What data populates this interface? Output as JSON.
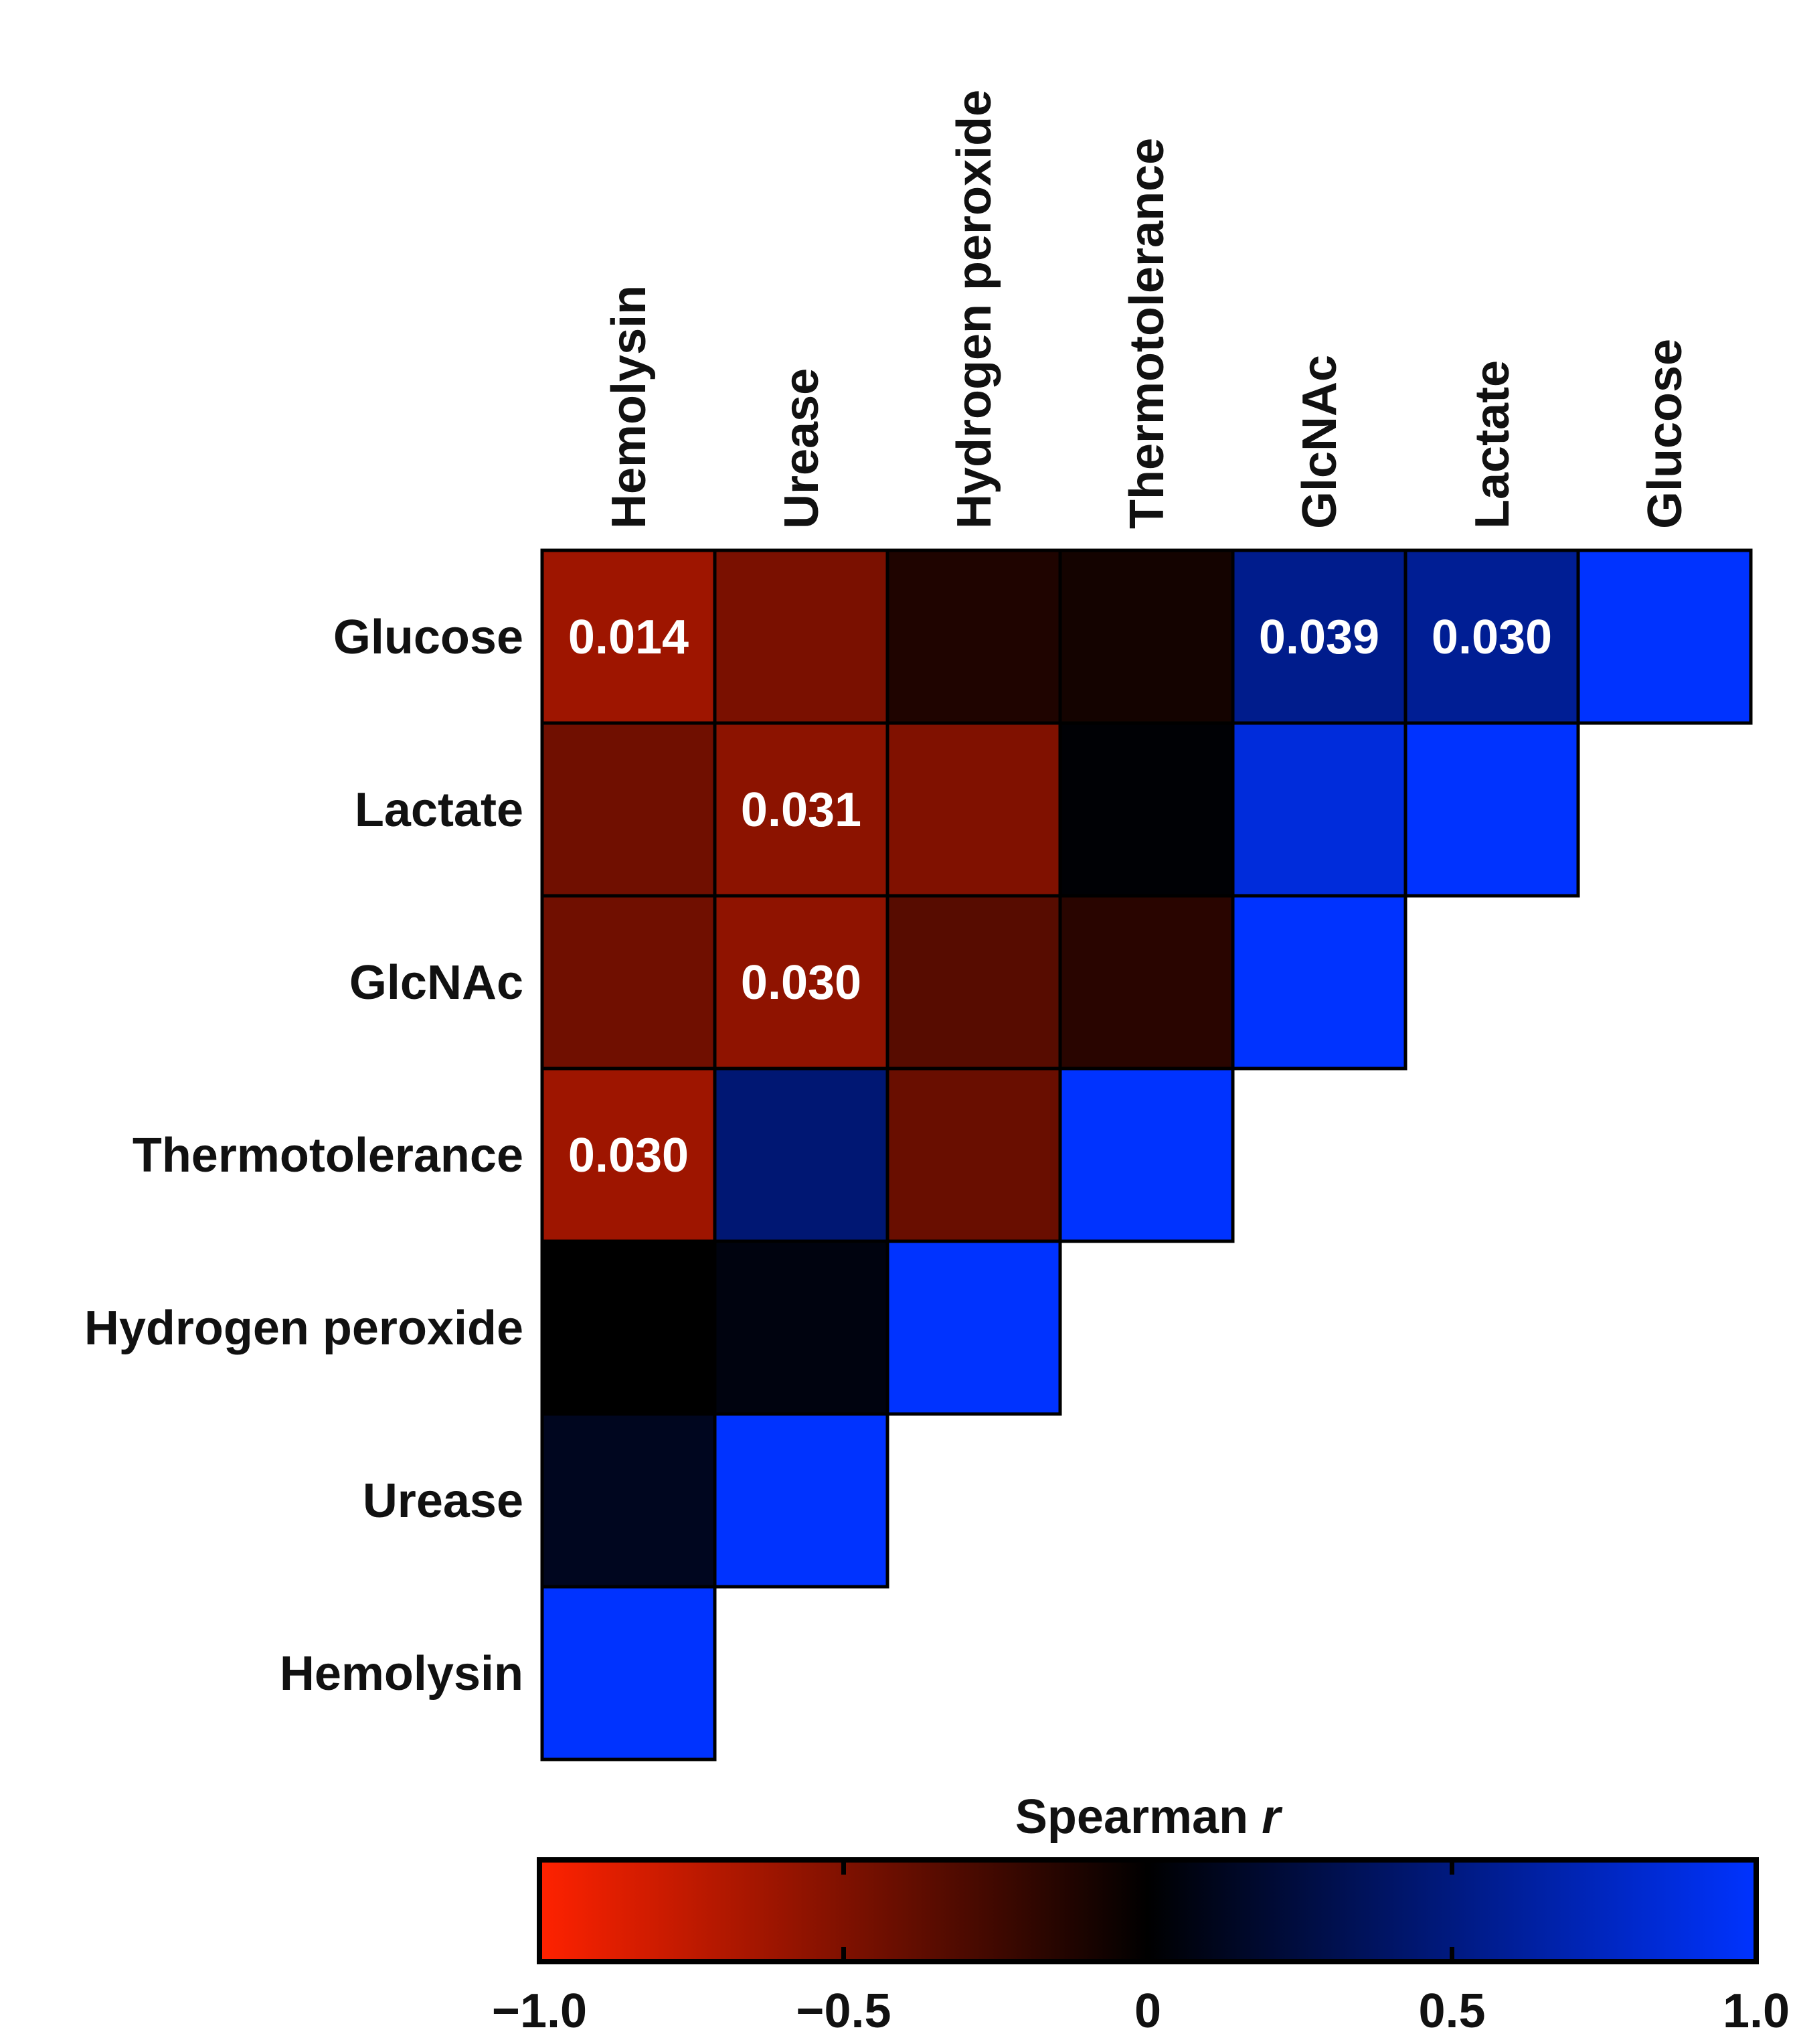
{
  "chart_data": {
    "type": "heatmap",
    "title": "",
    "columns": [
      "Hemolysin",
      "Urease",
      "Hydrogen peroxide",
      "Thermotolerance",
      "GlcNAc",
      "Lactate",
      "Glucose"
    ],
    "rows": [
      "Glucose",
      "Lactate",
      "GlcNAc",
      "Thermotolerance",
      "Hydrogen peroxide",
      "Urease",
      "Hemolysin"
    ],
    "values": [
      [
        -0.62,
        -0.48,
        -0.12,
        -0.08,
        0.55,
        0.58,
        1.0
      ],
      [
        -0.44,
        -0.55,
        -0.5,
        0.02,
        0.86,
        1.0,
        null
      ],
      [
        -0.44,
        -0.56,
        -0.34,
        -0.16,
        1.0,
        null,
        null
      ],
      [
        -0.62,
        0.45,
        -0.41,
        1.0,
        null,
        null,
        null
      ],
      [
        0.0,
        0.06,
        1.0,
        null,
        null,
        null,
        null
      ],
      [
        0.12,
        1.0,
        null,
        null,
        null,
        null,
        null
      ],
      [
        1.0,
        null,
        null,
        null,
        null,
        null,
        null
      ]
    ],
    "annotations": [
      {
        "row": "Glucose",
        "col": "Hemolysin",
        "text": "0.014"
      },
      {
        "row": "Glucose",
        "col": "GlcNAc",
        "text": "0.039"
      },
      {
        "row": "Glucose",
        "col": "Lactate",
        "text": "0.030"
      },
      {
        "row": "Lactate",
        "col": "Urease",
        "text": "0.031"
      },
      {
        "row": "GlcNAc",
        "col": "Urease",
        "text": "0.030"
      },
      {
        "row": "Thermotolerance",
        "col": "Hemolysin",
        "text": "0.030"
      }
    ],
    "colorbar": {
      "title": "Spearman",
      "title_italic": "r",
      "range": [
        -1.0,
        1.0
      ],
      "ticks": [
        -1.0,
        -0.5,
        0,
        0.5,
        1.0
      ],
      "tick_labels": [
        "−1.0",
        "−0.5",
        "0",
        "0.5",
        "1.0"
      ],
      "colors": {
        "negative": "#ff2200",
        "zero": "#000000",
        "positive": "#0033ff"
      }
    }
  }
}
